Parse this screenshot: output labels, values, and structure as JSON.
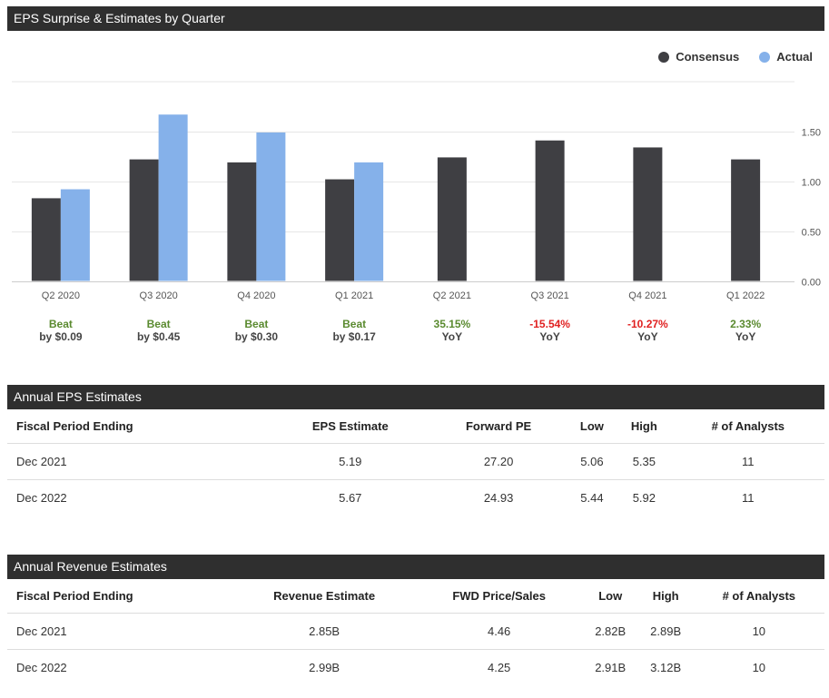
{
  "chart_section": {
    "title": "EPS Surprise & Estimates by Quarter"
  },
  "legend": [
    {
      "label": "Consensus",
      "color": "#3f3f43"
    },
    {
      "label": "Actual",
      "color": "#85b1ea"
    }
  ],
  "chart_data": {
    "type": "bar",
    "title": "EPS Surprise & Estimates by Quarter",
    "categories": [
      "Q2 2020",
      "Q3 2020",
      "Q4 2020",
      "Q1 2021",
      "Q2 2021",
      "Q3 2021",
      "Q4 2021",
      "Q1 2022"
    ],
    "series": [
      {
        "name": "Consensus",
        "color": "#3f3f43",
        "values": [
          0.83,
          1.22,
          1.19,
          1.02,
          1.24,
          1.41,
          1.34,
          1.22
        ]
      },
      {
        "name": "Actual",
        "color": "#85b1ea",
        "values": [
          0.92,
          1.67,
          1.49,
          1.19,
          null,
          null,
          null,
          null
        ]
      }
    ],
    "ylim": [
      0,
      2.0
    ],
    "yticks": [
      0,
      0.5,
      1.0,
      1.5
    ],
    "ytick_labels": [
      "0.00",
      "0.50",
      "1.00",
      "1.50"
    ],
    "grid": true,
    "xlabel": "",
    "ylabel": "",
    "annotations": [
      {
        "line1": "Beat",
        "line2": "by $0.09",
        "tone": "beat"
      },
      {
        "line1": "Beat",
        "line2": "by $0.45",
        "tone": "beat"
      },
      {
        "line1": "Beat",
        "line2": "by $0.30",
        "tone": "beat"
      },
      {
        "line1": "Beat",
        "line2": "by $0.17",
        "tone": "beat"
      },
      {
        "line1": "35.15%",
        "line2": "YoY",
        "tone": "up"
      },
      {
        "line1": "-15.54%",
        "line2": "YoY",
        "tone": "down"
      },
      {
        "line1": "-10.27%",
        "line2": "YoY",
        "tone": "down"
      },
      {
        "line1": "2.33%",
        "line2": "YoY",
        "tone": "up"
      }
    ],
    "tone_colors": {
      "beat": "#5a8a2f",
      "up": "#5a8a2f",
      "down": "#e02020"
    }
  },
  "eps_estimates": {
    "title": "Annual EPS Estimates",
    "headers": [
      "Fiscal Period Ending",
      "EPS Estimate",
      "Forward PE",
      "Low",
      "High",
      "# of Analysts"
    ],
    "rows": [
      [
        "Dec 2021",
        "5.19",
        "27.20",
        "5.06",
        "5.35",
        "11"
      ],
      [
        "Dec 2022",
        "5.67",
        "24.93",
        "5.44",
        "5.92",
        "11"
      ]
    ]
  },
  "revenue_estimates": {
    "title": "Annual Revenue Estimates",
    "headers": [
      "Fiscal Period Ending",
      "Revenue Estimate",
      "FWD Price/Sales",
      "Low",
      "High",
      "# of Analysts"
    ],
    "rows": [
      [
        "Dec 2021",
        "2.85B",
        "4.46",
        "2.82B",
        "2.89B",
        "10"
      ],
      [
        "Dec 2022",
        "2.99B",
        "4.25",
        "2.91B",
        "3.12B",
        "10"
      ]
    ]
  }
}
